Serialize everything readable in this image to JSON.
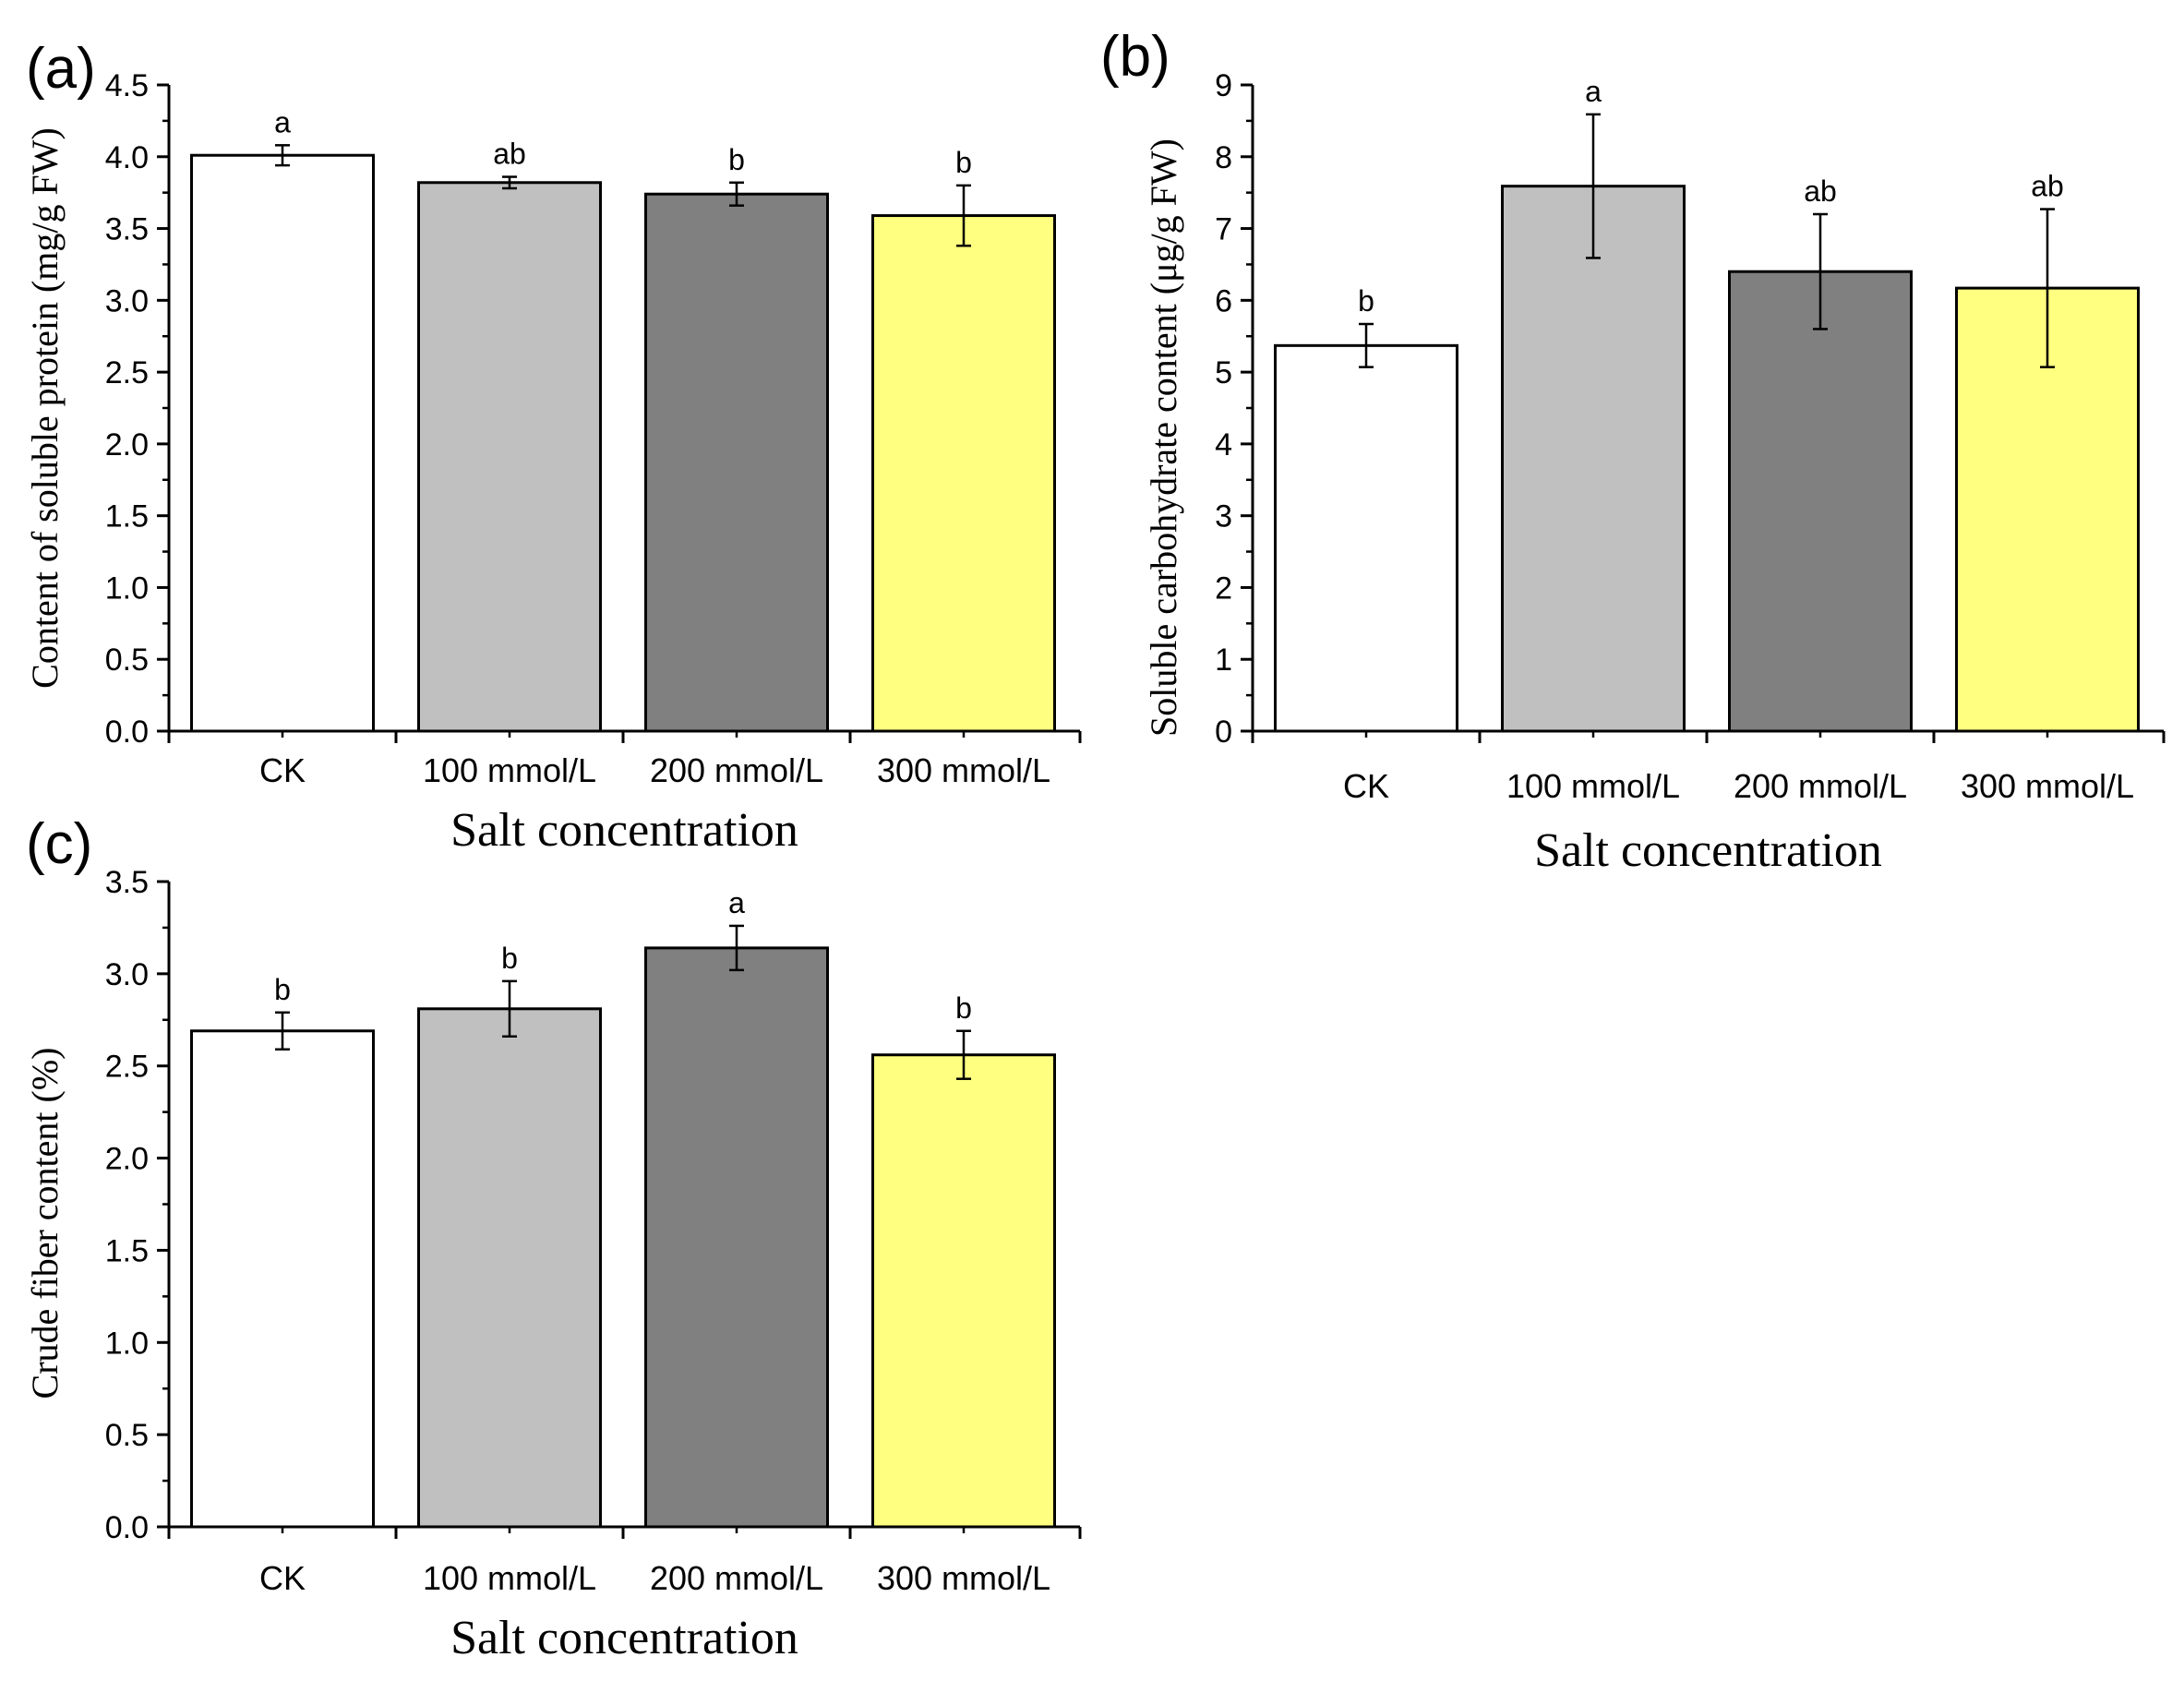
{
  "chart_data": [
    {
      "panel": "(a)",
      "type": "bar",
      "categories": [
        "CK",
        "100 mmol/L",
        "200 mmol/L",
        "300 mmol/L"
      ],
      "values": [
        4.01,
        3.82,
        3.74,
        3.59
      ],
      "errors": [
        0.07,
        0.04,
        0.08,
        0.21
      ],
      "significance": [
        "a",
        "ab",
        "b",
        "b"
      ],
      "colors": [
        "#ffffff",
        "#c0c0c0",
        "#808080",
        "#ffff80"
      ],
      "xlabel": "Salt concentration",
      "ylabel": "Content of soluble protein (mg/g FW)",
      "ylim": [
        0,
        4.5
      ],
      "ystep": 0.5,
      "yticks": [
        "0.0",
        "0.5",
        "1.0",
        "1.5",
        "2.0",
        "2.5",
        "3.0",
        "3.5",
        "4.0",
        "4.5"
      ]
    },
    {
      "panel": "(b)",
      "type": "bar",
      "categories": [
        "CK",
        "100 mmol/L",
        "200 mmol/L",
        "300 mmol/L"
      ],
      "values": [
        5.37,
        7.59,
        6.4,
        6.17
      ],
      "errors": [
        0.3,
        1.0,
        0.8,
        1.1
      ],
      "significance": [
        "b",
        "a",
        "ab",
        "ab"
      ],
      "colors": [
        "#ffffff",
        "#c0c0c0",
        "#808080",
        "#ffff80"
      ],
      "xlabel": "Salt concentration",
      "ylabel": "Soluble carbohydrate content (μg/g FW)",
      "ylim": [
        0,
        9
      ],
      "ystep": 1,
      "yticks": [
        "0",
        "1",
        "2",
        "3",
        "4",
        "5",
        "6",
        "7",
        "8",
        "9"
      ]
    },
    {
      "panel": "(c)",
      "type": "bar",
      "categories": [
        "CK",
        "100 mmol/L",
        "200 mmol/L",
        "300 mmol/L"
      ],
      "values": [
        2.69,
        2.81,
        3.14,
        2.56
      ],
      "errors": [
        0.1,
        0.15,
        0.12,
        0.13
      ],
      "significance": [
        "b",
        "b",
        "a",
        "b"
      ],
      "colors": [
        "#ffffff",
        "#c0c0c0",
        "#808080",
        "#ffff80"
      ],
      "xlabel": "Salt concentration",
      "ylabel": "Crude fiber content (%)",
      "ylim": [
        0,
        3.5
      ],
      "ystep": 0.5,
      "yticks": [
        "0.0",
        "0.5",
        "1.0",
        "1.5",
        "2.0",
        "2.5",
        "3.0",
        "3.5"
      ]
    }
  ]
}
